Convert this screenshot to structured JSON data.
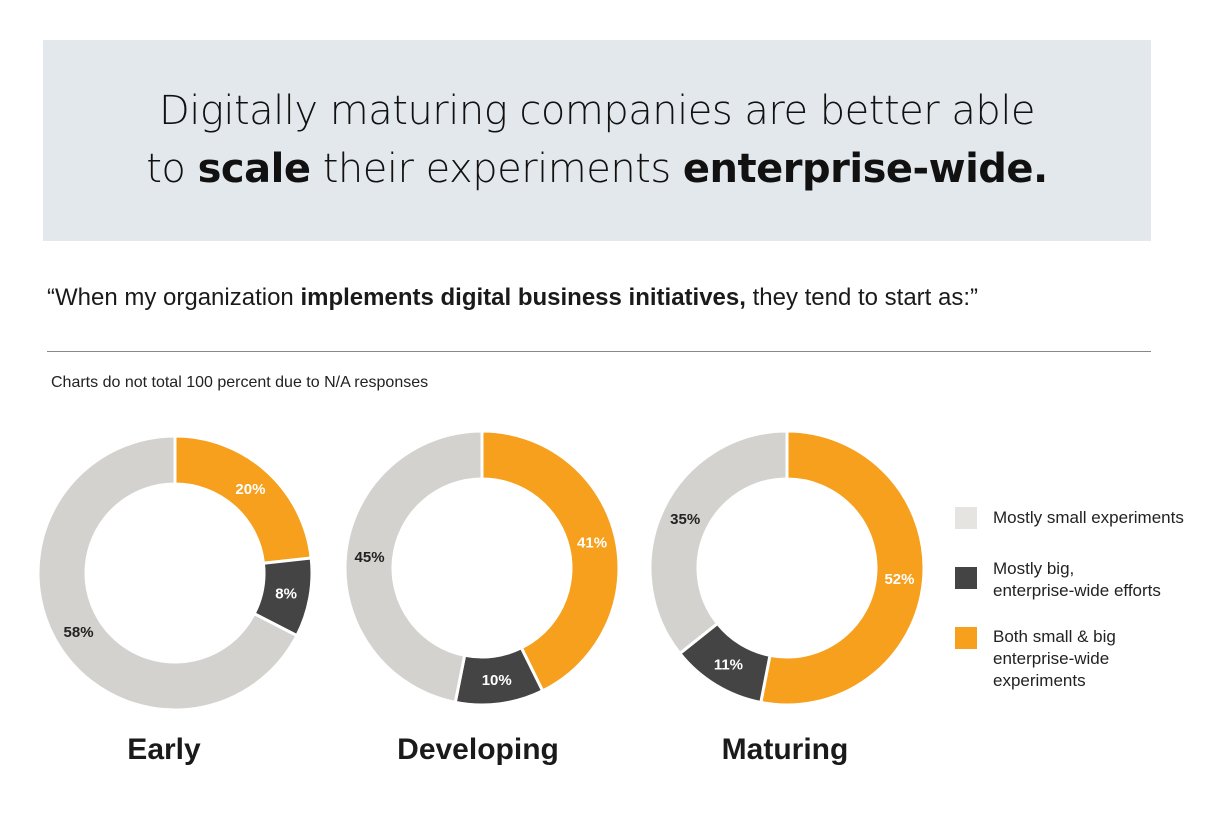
{
  "header": {
    "title_line1": "Digitally maturing companies are better able",
    "title_pre": "to ",
    "title_bold1": "scale",
    "title_mid": " their experiments ",
    "title_bold2": "enterprise-wide."
  },
  "quote": {
    "pre": "“When my organization ",
    "bold": "implements digital business initiatives,",
    "post": " they tend to start as:”"
  },
  "note": "Charts do not total 100 percent due to N/A responses",
  "chart_data": {
    "type": "pie",
    "variant": "donut",
    "legend_position": "right",
    "series": [
      {
        "name": "Mostly small experiments",
        "color": "#d3d2cf",
        "legend_color": "#e6e4e0"
      },
      {
        "name": "Mostly big, enterprise-wide efforts",
        "color": "#444444"
      },
      {
        "name": "Both small & big enterprise-wide experiments",
        "color": "#f7a01e"
      }
    ],
    "charts": [
      {
        "category": "Early",
        "values": {
          "small": 58,
          "big": 8,
          "both": 20
        },
        "labels": [
          "58%",
          "8%",
          "20%"
        ]
      },
      {
        "category": "Developing",
        "values": {
          "small": 45,
          "big": 10,
          "both": 41
        },
        "labels": [
          "45%",
          "10%",
          "41%"
        ]
      },
      {
        "category": "Maturing",
        "values": {
          "small": 35,
          "big": 11,
          "both": 52
        },
        "labels": [
          "35%",
          "11%",
          "52%"
        ]
      }
    ]
  },
  "legend": {
    "items": [
      {
        "lines": [
          "Mostly small experiments"
        ]
      },
      {
        "lines": [
          "Mostly big,",
          "enterprise-wide efforts"
        ]
      },
      {
        "lines": [
          "Both small & big",
          "enterprise-wide",
          "experiments"
        ]
      }
    ]
  }
}
